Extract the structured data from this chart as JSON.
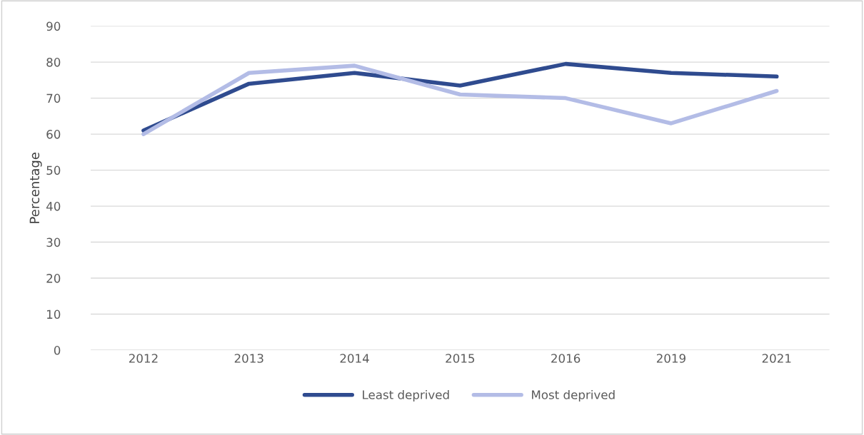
{
  "chart_data": {
    "type": "line",
    "ylabel": "Percentage",
    "categories": [
      "2012",
      "2013",
      "2014",
      "2015",
      "2016",
      "2019",
      "2021"
    ],
    "series": [
      {
        "name": "Least deprived",
        "color": "#2f4b8f",
        "values": [
          61,
          74,
          77,
          73.5,
          79.5,
          77,
          76
        ]
      },
      {
        "name": "Most deprived",
        "color": "#b3bce6",
        "values": [
          60,
          77,
          79,
          71,
          70,
          63,
          72
        ]
      }
    ],
    "ylim": [
      0,
      90
    ],
    "yticks": [
      0,
      10,
      20,
      30,
      40,
      50,
      60,
      70,
      80,
      90
    ],
    "grid": "y",
    "legend": "bottom"
  }
}
